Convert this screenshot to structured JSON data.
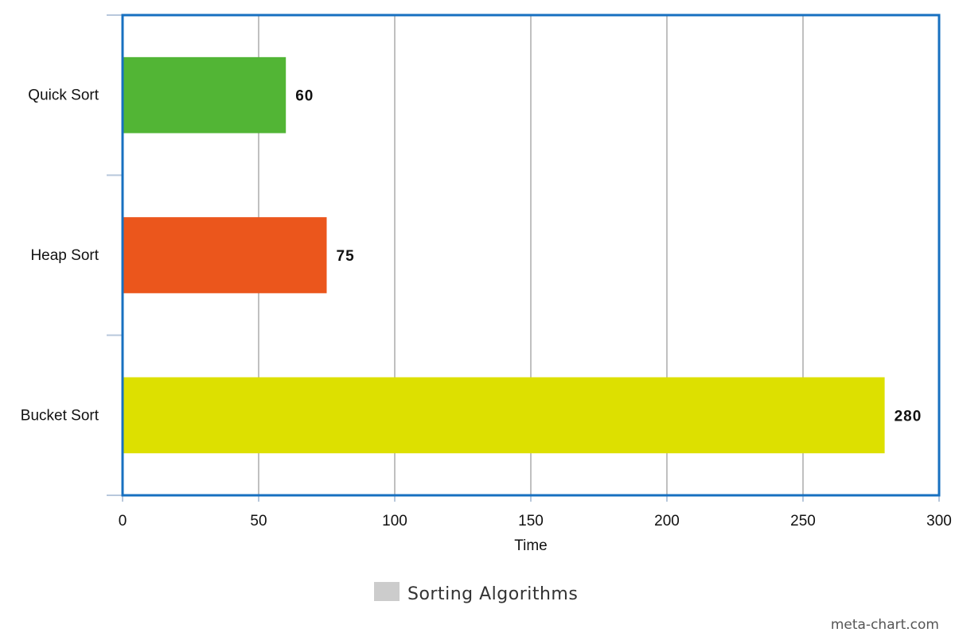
{
  "chart_data": {
    "type": "bar",
    "orientation": "horizontal",
    "title": "",
    "categories": [
      "Quick Sort",
      "Heap Sort",
      "Bucket Sort"
    ],
    "values": [
      60,
      75,
      280
    ],
    "value_labels": [
      "60",
      "75",
      "280"
    ],
    "bar_colors": [
      "#52b535",
      "#eb561c",
      "#dde000"
    ],
    "xlabel": "Time",
    "ylabel": "",
    "xlim": [
      0,
      300
    ],
    "x_ticks": [
      0,
      50,
      100,
      150,
      200,
      250,
      300
    ],
    "grid": true,
    "frame_color": "#1770c0",
    "legend": {
      "position": "bottom-center",
      "items": [
        {
          "label": "Sorting Algorithms",
          "color": "#cccccc"
        }
      ]
    }
  },
  "credit": "meta-chart.com"
}
